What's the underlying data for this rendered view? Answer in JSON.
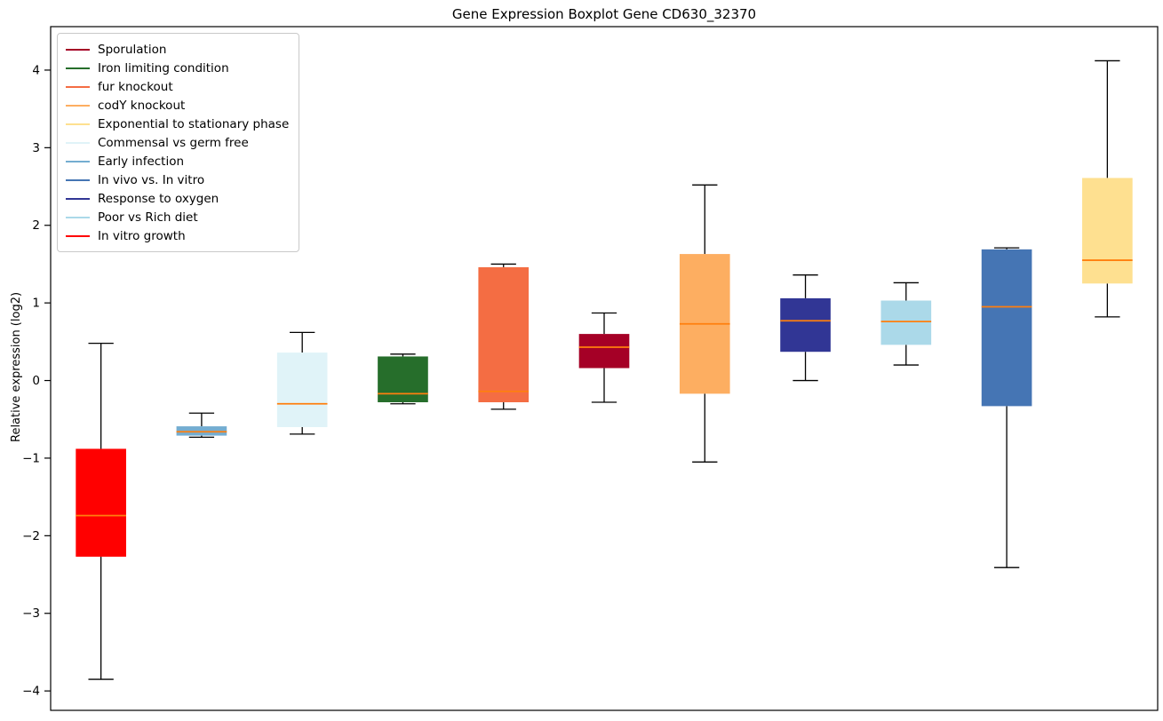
{
  "title": "Gene Expression Boxplot Gene CD630_32370",
  "chart_data": {
    "type": "box",
    "title": "Gene Expression Boxplot Gene CD630_32370",
    "ylabel": "Relative expression (log2)",
    "xlabel": "",
    "ylim": [
      -4.25,
      4.56
    ],
    "yticks": [
      -4,
      -3,
      -2,
      -1,
      0,
      1,
      2,
      3,
      4
    ],
    "x_tick_labels_visible": false,
    "grid": false,
    "legend_position": "upper-left",
    "style": {
      "median_color": "#ff7f0e",
      "whisker_color": "#000000",
      "axes_color": "#000000",
      "background": "#ffffff"
    },
    "legend": [
      {
        "label": "Sporulation",
        "color": "#a50026"
      },
      {
        "label": "Iron limiting condition",
        "color": "#266e2b"
      },
      {
        "label": "fur knockout",
        "color": "#f46d43"
      },
      {
        "label": "codY knockout",
        "color": "#fdae61"
      },
      {
        "label": "Exponential to stationary phase",
        "color": "#fee090"
      },
      {
        "label": "Commensal vs germ free",
        "color": "#e0f3f8"
      },
      {
        "label": "Early infection",
        "color": "#74add1"
      },
      {
        "label": "In vivo vs. In vitro",
        "color": "#4575b4"
      },
      {
        "label": "Response to oxygen",
        "color": "#313695"
      },
      {
        "label": "Poor vs Rich diet",
        "color": "#abd9e9"
      },
      {
        "label": "In vitro growth",
        "color": "#ff0000"
      }
    ],
    "groups": [
      {
        "name": "In vitro growth",
        "color": "#ff0000",
        "whisker_low": -3.85,
        "q1": -2.27,
        "median": -1.74,
        "q3": -0.88,
        "whisker_high": 0.48
      },
      {
        "name": "Early infection",
        "color": "#74add1",
        "whisker_low": -0.73,
        "q1": -0.71,
        "median": -0.66,
        "q3": -0.59,
        "whisker_high": -0.42
      },
      {
        "name": "Commensal vs germ free",
        "color": "#e0f3f8",
        "whisker_low": -0.69,
        "q1": -0.6,
        "median": -0.3,
        "q3": 0.36,
        "whisker_high": 0.62
      },
      {
        "name": "Iron limiting condition",
        "color": "#266e2b",
        "whisker_low": -0.3,
        "q1": -0.28,
        "median": -0.17,
        "q3": 0.31,
        "whisker_high": 0.34
      },
      {
        "name": "fur knockout",
        "color": "#f46d43",
        "whisker_low": -0.37,
        "q1": -0.28,
        "median": -0.14,
        "q3": 1.46,
        "whisker_high": 1.5
      },
      {
        "name": "Sporulation",
        "color": "#a50026",
        "whisker_low": -0.28,
        "q1": 0.16,
        "median": 0.43,
        "q3": 0.6,
        "whisker_high": 0.87
      },
      {
        "name": "codY knockout",
        "color": "#fdae61",
        "whisker_low": -1.05,
        "q1": -0.17,
        "median": 0.73,
        "q3": 1.63,
        "whisker_high": 2.52
      },
      {
        "name": "Response to oxygen",
        "color": "#313695",
        "whisker_low": 0.0,
        "q1": 0.37,
        "median": 0.77,
        "q3": 1.06,
        "whisker_high": 1.36
      },
      {
        "name": "Poor vs Rich diet",
        "color": "#abd9e9",
        "whisker_low": 0.2,
        "q1": 0.46,
        "median": 0.76,
        "q3": 1.03,
        "whisker_high": 1.26
      },
      {
        "name": "In vivo vs. In vitro",
        "color": "#4575b4",
        "whisker_low": -2.41,
        "q1": -0.33,
        "median": 0.95,
        "q3": 1.69,
        "whisker_high": 1.71
      },
      {
        "name": "Exponential to stationary phase",
        "color": "#fee090",
        "whisker_low": 0.82,
        "q1": 1.25,
        "median": 1.55,
        "q3": 2.61,
        "whisker_high": 4.12
      }
    ]
  }
}
